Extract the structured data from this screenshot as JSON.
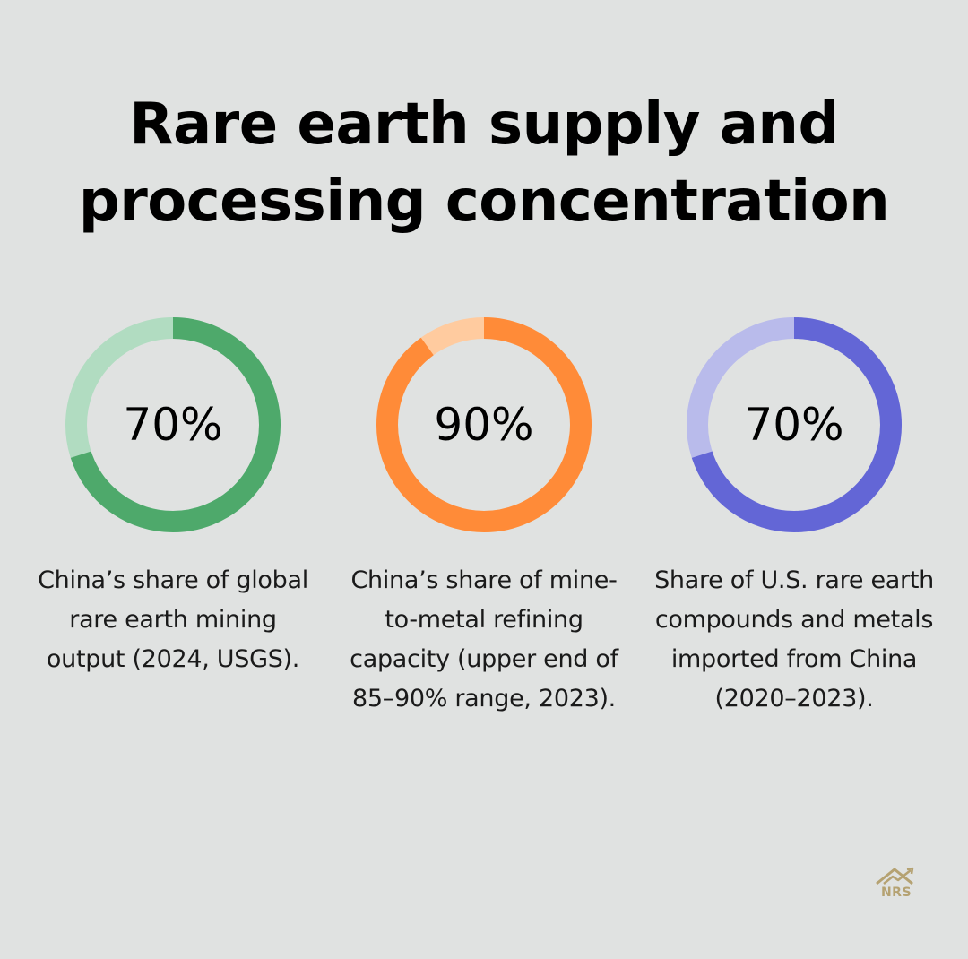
{
  "title": "Rare earth supply and processing concentration",
  "chart_data": {
    "type": "pie",
    "stats": [
      {
        "value": 70,
        "label": "70%",
        "description": "China’s share of global rare earth mining output (2024, USGS).",
        "color": "#4ea96b",
        "track_color": "#b1dcc1"
      },
      {
        "value": 90,
        "label": "90%",
        "description": "China’s share of mine-to-metal refining capacity (upper end of 85–90% range, 2023).",
        "color": "#ff8b38",
        "track_color": "#ffcb9f"
      },
      {
        "value": 70,
        "label": "70%",
        "description": "Share of U.S. rare earth compounds and metals imported from China (2020–2023).",
        "color": "#6366d6",
        "track_color": "#b9bbeb"
      }
    ]
  },
  "logo": {
    "text": "NRS",
    "icon": "house-chart-icon",
    "color": "#b5a272"
  }
}
